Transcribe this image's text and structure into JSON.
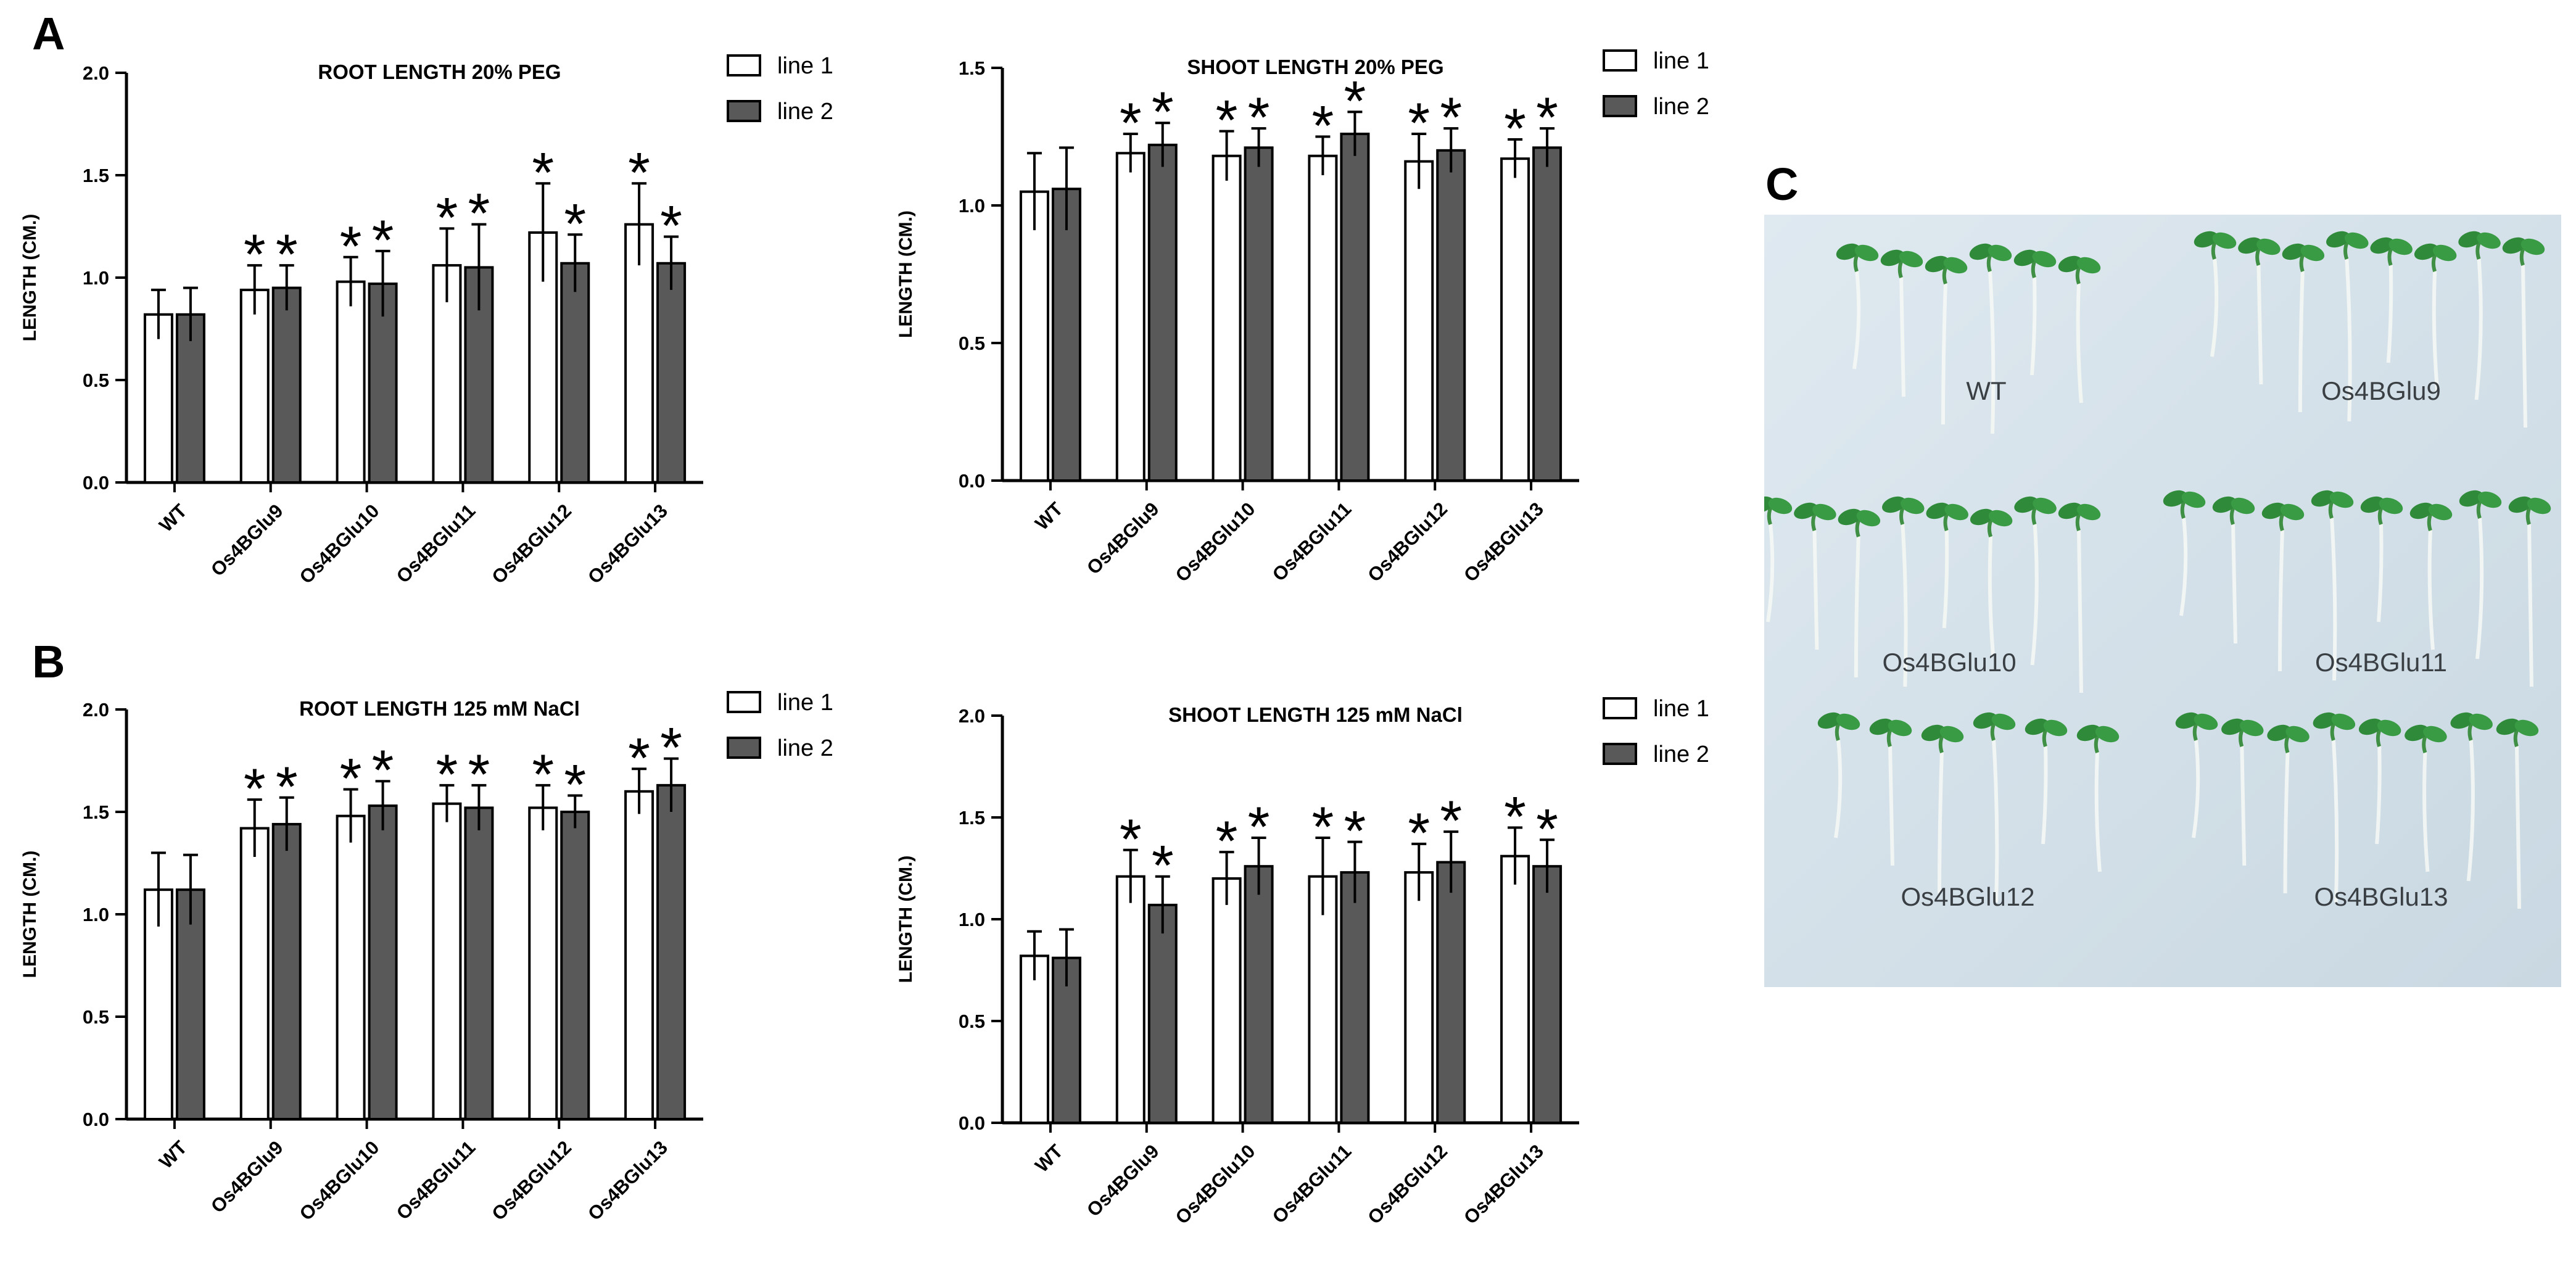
{
  "panels": {
    "a": "A",
    "b": "B",
    "c": "C"
  },
  "legend_labels": [
    "line 1",
    "line 2"
  ],
  "colors": {
    "line1_fill": "#ffffff",
    "line2_fill": "#595959",
    "axis": "#000000",
    "plate_bg": "#dbe6ee",
    "seedling": "#2f8a3a"
  },
  "chart_data": [
    {
      "type": "bar",
      "title": "ROOT LENGTH 20% PEG",
      "xlabel": "",
      "ylabel": "LENGTH (CM.)",
      "ylim": [
        0,
        2.0
      ],
      "yticks": [
        0.0,
        0.5,
        1.0,
        1.5,
        2.0
      ],
      "ytick_labels": [
        "0.0",
        "0.5",
        "1.0",
        "1.5",
        "2.0"
      ],
      "categories": [
        "WT",
        "Os4BGlu9",
        "Os4BGlu10",
        "Os4BGlu11",
        "Os4BGlu12",
        "Os4BGlu13"
      ],
      "series": [
        {
          "name": "line 1",
          "values": [
            0.82,
            0.94,
            0.98,
            1.06,
            1.22,
            1.26
          ],
          "errors": [
            0.12,
            0.12,
            0.12,
            0.18,
            0.24,
            0.2
          ]
        },
        {
          "name": "line 2",
          "values": [
            0.82,
            0.95,
            0.97,
            1.05,
            1.07,
            1.07
          ],
          "errors": [
            0.13,
            0.11,
            0.16,
            0.21,
            0.14,
            0.13
          ]
        }
      ],
      "significance": [
        [
          false,
          true,
          true,
          true,
          true,
          true
        ],
        [
          false,
          true,
          true,
          true,
          true,
          true
        ]
      ],
      "significance_mark": "*",
      "grid": false,
      "legend_position": "top-right"
    },
    {
      "type": "bar",
      "title": "SHOOT LENGTH 20% PEG",
      "xlabel": "",
      "ylabel": "LENGTH (CM.)",
      "ylim": [
        0,
        1.5
      ],
      "yticks": [
        0.0,
        0.5,
        1.0,
        1.5
      ],
      "ytick_labels": [
        "0.0",
        "0.5",
        "1.0",
        "1.5"
      ],
      "categories": [
        "WT",
        "Os4BGlu9",
        "Os4BGlu10",
        "Os4BGlu11",
        "Os4BGlu12",
        "Os4BGlu13"
      ],
      "series": [
        {
          "name": "line 1",
          "values": [
            1.05,
            1.19,
            1.18,
            1.18,
            1.16,
            1.17
          ],
          "errors": [
            0.14,
            0.07,
            0.09,
            0.07,
            0.1,
            0.07
          ]
        },
        {
          "name": "line 2",
          "values": [
            1.06,
            1.22,
            1.21,
            1.26,
            1.2,
            1.21
          ],
          "errors": [
            0.15,
            0.08,
            0.07,
            0.08,
            0.08,
            0.07
          ]
        }
      ],
      "significance": [
        [
          false,
          true,
          true,
          true,
          true,
          true
        ],
        [
          false,
          true,
          true,
          true,
          true,
          true
        ]
      ],
      "significance_mark": "*",
      "grid": false,
      "legend_position": "top-right"
    },
    {
      "type": "bar",
      "title": "ROOT LENGTH 125 mM NaCl",
      "xlabel": "",
      "ylabel": "LENGTH (CM.)",
      "ylim": [
        0,
        2.0
      ],
      "yticks": [
        0.0,
        0.5,
        1.0,
        1.5,
        2.0
      ],
      "ytick_labels": [
        "0.0",
        "0.5",
        "1.0",
        "1.5",
        "2.0"
      ],
      "categories": [
        "WT",
        "Os4BGlu9",
        "Os4BGlu10",
        "Os4BGlu11",
        "Os4BGlu12",
        "Os4BGlu13"
      ],
      "series": [
        {
          "name": "line 1",
          "values": [
            1.12,
            1.42,
            1.48,
            1.54,
            1.52,
            1.6
          ],
          "errors": [
            0.18,
            0.14,
            0.13,
            0.09,
            0.11,
            0.11
          ]
        },
        {
          "name": "line 2",
          "values": [
            1.12,
            1.44,
            1.53,
            1.52,
            1.5,
            1.63
          ],
          "errors": [
            0.17,
            0.13,
            0.12,
            0.11,
            0.08,
            0.13
          ]
        }
      ],
      "significance": [
        [
          false,
          true,
          true,
          true,
          true,
          true
        ],
        [
          false,
          true,
          true,
          true,
          true,
          true
        ]
      ],
      "significance_mark": "*",
      "grid": false,
      "legend_position": "top-right"
    },
    {
      "type": "bar",
      "title": "SHOOT LENGTH 125 mM NaCl",
      "xlabel": "",
      "ylabel": "LENGTH (CM.)",
      "ylim": [
        0,
        2.0
      ],
      "yticks": [
        0.0,
        0.5,
        1.0,
        1.5,
        2.0
      ],
      "ytick_labels": [
        "0.0",
        "0.5",
        "1.0",
        "1.5",
        "2.0"
      ],
      "categories": [
        "WT",
        "Os4BGlu9",
        "Os4BGlu10",
        "Os4BGlu11",
        "Os4BGlu12",
        "Os4BGlu13"
      ],
      "series": [
        {
          "name": "line 1",
          "values": [
            0.82,
            1.21,
            1.2,
            1.21,
            1.23,
            1.31
          ],
          "errors": [
            0.12,
            0.13,
            0.13,
            0.19,
            0.14,
            0.14
          ]
        },
        {
          "name": "line 2",
          "values": [
            0.81,
            1.07,
            1.26,
            1.23,
            1.28,
            1.26
          ],
          "errors": [
            0.14,
            0.14,
            0.14,
            0.15,
            0.15,
            0.13
          ]
        }
      ],
      "significance": [
        [
          false,
          true,
          true,
          true,
          true,
          true
        ],
        [
          false,
          true,
          true,
          true,
          true,
          true
        ]
      ],
      "significance_mark": "*",
      "grid": false,
      "legend_position": "top-right"
    }
  ],
  "photo": {
    "labels": [
      "WT",
      "Os4BGlu9",
      "Os4BGlu10",
      "Os4BGlu11",
      "Os4BGlu12",
      "Os4BGlu13"
    ]
  }
}
